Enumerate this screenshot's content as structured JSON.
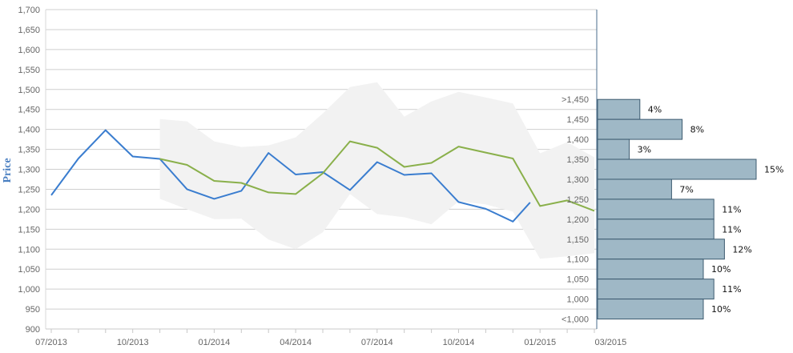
{
  "chart_data": {
    "type": "line",
    "ylabel": "Price",
    "ylim": [
      900,
      1700
    ],
    "y_ticks": [
      900,
      950,
      1000,
      1050,
      1100,
      1150,
      1200,
      1250,
      1300,
      1350,
      1400,
      1450,
      1500,
      1550,
      1600,
      1650,
      1700
    ],
    "y_tick_labels": [
      "900",
      "950",
      "1,000",
      "1,050",
      "1,100",
      "1,150",
      "1,200",
      "1,250",
      "1,300",
      "1,350",
      "1,400",
      "1,450",
      "1,500",
      "1,550",
      "1,600",
      "1,650",
      "1,700"
    ],
    "x_range": [
      "2013-07",
      "2015-03"
    ],
    "x_tick_labels": [
      "07/2013",
      "10/2013",
      "01/2014",
      "04/2014",
      "07/2014",
      "10/2014",
      "01/2015",
      "03/2015"
    ],
    "grid": true,
    "series": [
      {
        "color": "#3a7dcf",
        "points": [
          [
            "2013-07",
            1235
          ],
          [
            "2013-08",
            1327
          ],
          [
            "2013-09",
            1398
          ],
          [
            "2013-10",
            1332
          ],
          [
            "2013-11",
            1326
          ],
          [
            "2013-12",
            1250
          ],
          [
            "2014-01",
            1226
          ],
          [
            "2014-02",
            1246
          ],
          [
            "2014-03",
            1341
          ],
          [
            "2014-04",
            1287
          ],
          [
            "2014-05",
            1293
          ],
          [
            "2014-06",
            1248
          ],
          [
            "2014-07",
            1318
          ],
          [
            "2014-08",
            1286
          ],
          [
            "2014-09",
            1290
          ],
          [
            "2014-10",
            1218
          ],
          [
            "2014-11",
            1201
          ],
          [
            "2014-12",
            1169
          ],
          [
            "2014-12-20",
            1217
          ]
        ]
      },
      {
        "color": "#8ab04b",
        "points": [
          [
            "2013-11",
            1326
          ],
          [
            "2013-12",
            1311
          ],
          [
            "2014-01",
            1271
          ],
          [
            "2014-02",
            1266
          ],
          [
            "2014-03",
            1242
          ],
          [
            "2014-04",
            1238
          ],
          [
            "2014-05",
            1290
          ],
          [
            "2014-06",
            1370
          ],
          [
            "2014-07",
            1354
          ],
          [
            "2014-08",
            1306
          ],
          [
            "2014-09",
            1316
          ],
          [
            "2014-10",
            1357
          ],
          [
            "2014-11",
            1342
          ],
          [
            "2014-12",
            1327
          ],
          [
            "2015-01",
            1208
          ],
          [
            "2015-02",
            1222
          ],
          [
            "2015-03",
            1196
          ]
        ]
      }
    ],
    "forecast_band": {
      "color": "#f2f2f2",
      "upper": [
        [
          "2013-11",
          1426
        ],
        [
          "2013-12",
          1420
        ],
        [
          "2014-01",
          1370
        ],
        [
          "2014-02",
          1356
        ],
        [
          "2014-03",
          1360
        ],
        [
          "2014-04",
          1380
        ],
        [
          "2014-05",
          1440
        ],
        [
          "2014-06",
          1506
        ],
        [
          "2014-07",
          1518
        ],
        [
          "2014-08",
          1432
        ],
        [
          "2014-09",
          1470
        ],
        [
          "2014-10",
          1494
        ],
        [
          "2014-11",
          1480
        ],
        [
          "2014-12",
          1465
        ],
        [
          "2015-01",
          1340
        ],
        [
          "2015-02",
          1368
        ],
        [
          "2015-03",
          1330
        ]
      ],
      "lower": [
        [
          "2013-11",
          1226
        ],
        [
          "2013-12",
          1200
        ],
        [
          "2014-01",
          1175
        ],
        [
          "2014-02",
          1176
        ],
        [
          "2014-03",
          1124
        ],
        [
          "2014-04",
          1100
        ],
        [
          "2014-05",
          1142
        ],
        [
          "2014-06",
          1238
        ],
        [
          "2014-07",
          1188
        ],
        [
          "2014-08",
          1180
        ],
        [
          "2014-09",
          1162
        ],
        [
          "2014-10",
          1220
        ],
        [
          "2014-11",
          1212
        ],
        [
          "2014-12",
          1194
        ],
        [
          "2015-01",
          1076
        ],
        [
          "2015-02",
          1082
        ],
        [
          "2015-03",
          1090
        ]
      ]
    },
    "distribution": {
      "color": "#9fb8c6",
      "bins": [
        {
          "label": ">1,450",
          "y_low": 1425,
          "y_high": 1475,
          "percent": 4,
          "value_label": "4%"
        },
        {
          "label": "1,450",
          "y_low": 1375,
          "y_high": 1425,
          "percent": 8,
          "value_label": "8%"
        },
        {
          "label": "1,400",
          "y_low": 1325,
          "y_high": 1375,
          "percent": 3,
          "value_label": "3%"
        },
        {
          "label": "1,350",
          "y_low": 1275,
          "y_high": 1325,
          "percent": 15,
          "value_label": "15%"
        },
        {
          "label": "1,300",
          "y_low": 1225,
          "y_high": 1275,
          "percent": 7,
          "value_label": "7%"
        },
        {
          "label": "1,250",
          "y_low": 1175,
          "y_high": 1225,
          "percent": 11,
          "value_label": "11%"
        },
        {
          "label": "1,200",
          "y_low": 1125,
          "y_high": 1175,
          "percent": 11,
          "value_label": "11%"
        },
        {
          "label": "1,150",
          "y_low": 1075,
          "y_high": 1125,
          "percent": 12,
          "value_label": "12%"
        },
        {
          "label": "1,100",
          "y_low": 1025,
          "y_high": 1075,
          "percent": 10,
          "value_label": "10%"
        },
        {
          "label": "1,050",
          "y_low": 975,
          "y_high": 1025,
          "percent": 11,
          "value_label": "11%"
        },
        {
          "label": "1,000",
          "y_low": 925,
          "y_high": 975,
          "percent": 10,
          "value_label": "10%"
        }
      ],
      "extra_labels": [
        "<1,000"
      ]
    }
  }
}
